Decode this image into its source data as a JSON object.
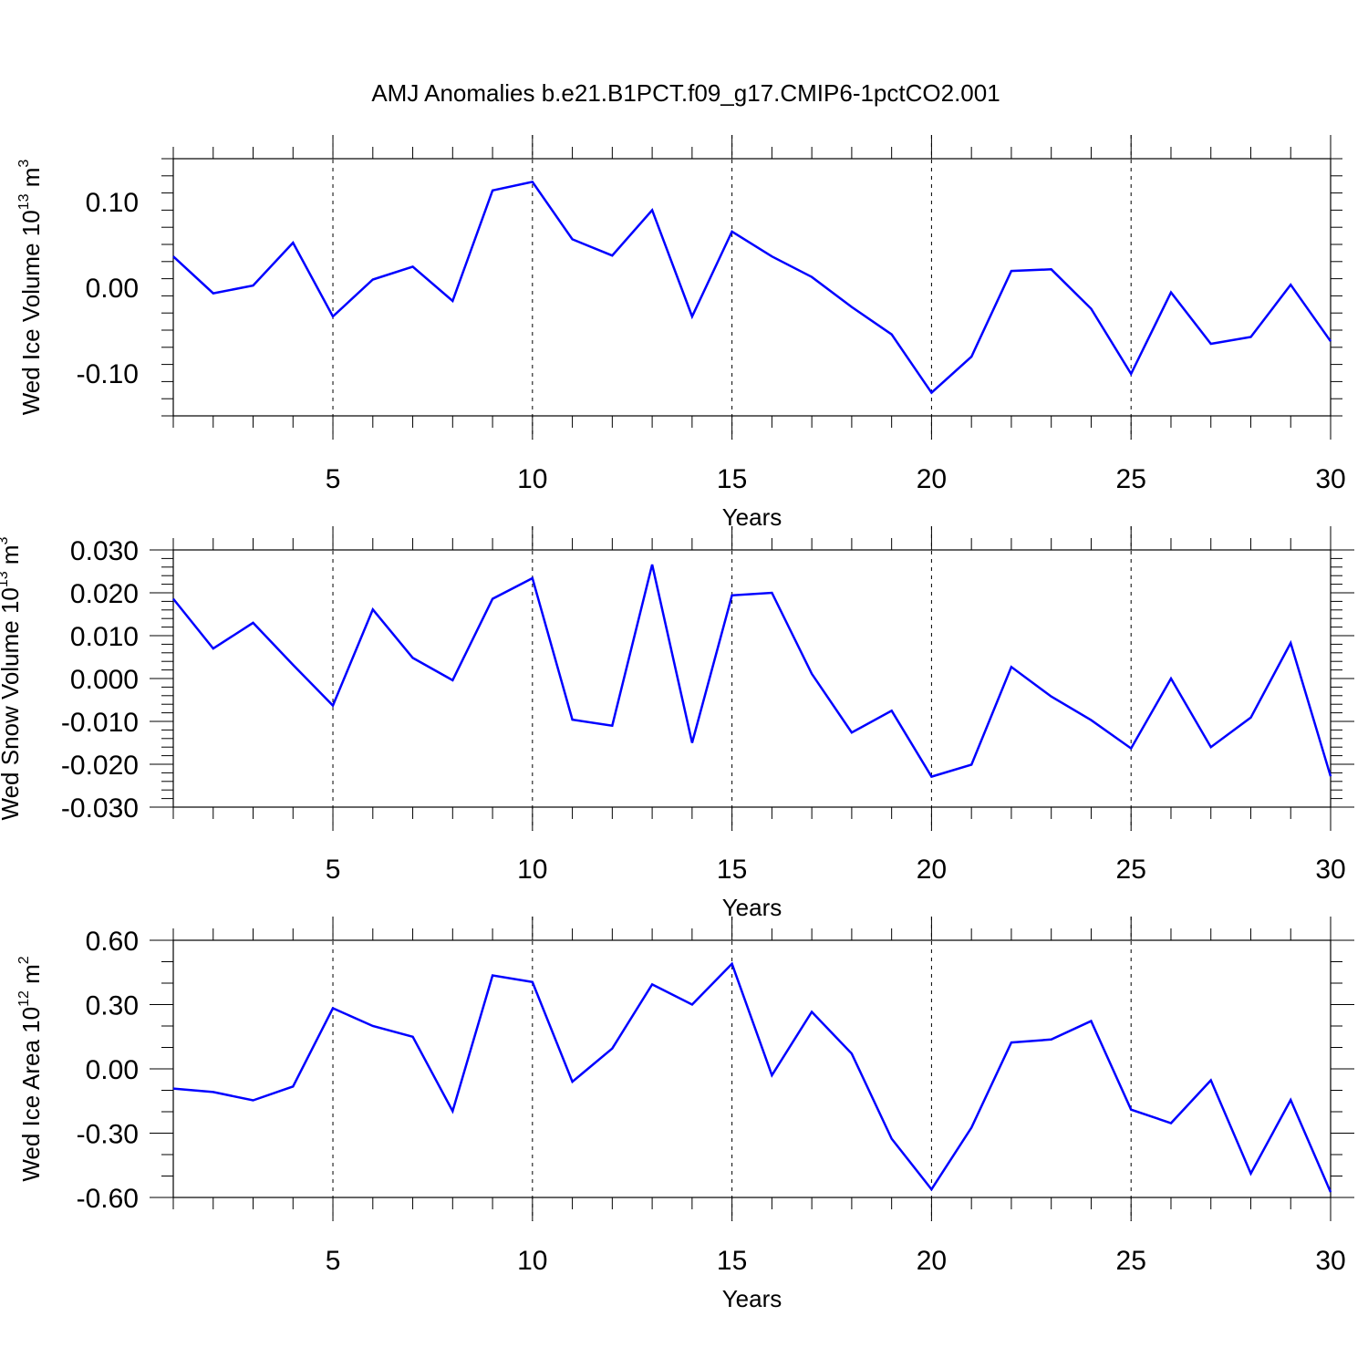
{
  "title": "AMJ Anomalies b.e21.B1PCT.f09_g17.CMIP6-1pctCO2.001",
  "chart_data": [
    {
      "type": "line",
      "ylabel": "Wed Ice Volume 10",
      "ylabel_exp": "13",
      "ylabel_unit": " m",
      "ylabel_unit_exp": "3",
      "xlabel": "Years",
      "xlim": [
        1,
        30
      ],
      "ylim": [
        -0.15,
        0.15
      ],
      "yticks": [
        -0.1,
        0.0,
        0.1
      ],
      "ytick_labels": [
        "-0.10",
        "0.00",
        "0.10"
      ],
      "xticks": [
        5,
        10,
        15,
        20,
        25,
        30
      ],
      "xtick_labels": [
        "5",
        "10",
        "15",
        "20",
        "25",
        "30"
      ],
      "x": [
        1,
        2,
        3,
        4,
        5,
        6,
        7,
        8,
        9,
        10,
        11,
        12,
        13,
        14,
        15,
        16,
        17,
        18,
        19,
        20,
        21,
        22,
        23,
        24,
        25,
        26,
        27,
        28,
        29,
        30
      ],
      "values": [
        0.036,
        -0.007,
        0.002,
        0.052,
        -0.034,
        0.009,
        0.024,
        -0.016,
        0.113,
        0.123,
        0.056,
        0.037,
        0.09,
        -0.034,
        0.065,
        0.036,
        0.012,
        -0.023,
        -0.055,
        -0.123,
        -0.081,
        0.019,
        0.021,
        -0.025,
        -0.101,
        -0.006,
        -0.066,
        -0.058,
        0.003,
        -0.063
      ],
      "color": "#0000ff"
    },
    {
      "type": "line",
      "ylabel": "Wed Snow Volume 10",
      "ylabel_exp": "13",
      "ylabel_unit": " m",
      "ylabel_unit_exp": "3",
      "xlabel": "Years",
      "xlim": [
        1,
        30
      ],
      "ylim": [
        -0.03,
        0.03
      ],
      "yticks": [
        -0.03,
        -0.02,
        -0.01,
        0.0,
        0.01,
        0.02,
        0.03
      ],
      "ytick_labels": [
        "-0.030",
        "-0.020",
        "-0.010",
        "0.000",
        "0.010",
        "0.020",
        "0.030"
      ],
      "xticks": [
        5,
        10,
        15,
        20,
        25,
        30
      ],
      "xtick_labels": [
        "5",
        "10",
        "15",
        "20",
        "25",
        "30"
      ],
      "x": [
        1,
        2,
        3,
        4,
        5,
        6,
        7,
        8,
        9,
        10,
        11,
        12,
        13,
        14,
        15,
        16,
        17,
        18,
        19,
        20,
        21,
        22,
        23,
        24,
        25,
        26,
        27,
        28,
        29,
        30
      ],
      "values": [
        0.0186,
        0.007,
        0.013,
        0.0032,
        -0.0063,
        0.0161,
        0.0048,
        -0.0004,
        0.0186,
        0.0234,
        -0.0096,
        -0.011,
        0.0266,
        -0.015,
        0.0194,
        0.02,
        0.0011,
        -0.0126,
        -0.0075,
        -0.0229,
        -0.0201,
        0.0027,
        -0.0042,
        -0.0097,
        -0.0163,
        0.0,
        -0.016,
        -0.0091,
        0.0083,
        -0.0228
      ],
      "color": "#0000ff"
    },
    {
      "type": "line",
      "ylabel": "Wed Ice Area 10",
      "ylabel_exp": "12",
      "ylabel_unit": " m",
      "ylabel_unit_exp": "2",
      "xlabel": "Years",
      "xlim": [
        1,
        30
      ],
      "ylim": [
        -0.6,
        0.6
      ],
      "yticks": [
        -0.6,
        -0.3,
        0.0,
        0.3,
        0.6
      ],
      "ytick_labels": [
        "-0.60",
        "-0.30",
        "0.00",
        "0.30",
        "0.60"
      ],
      "xticks": [
        5,
        10,
        15,
        20,
        25,
        30
      ],
      "xtick_labels": [
        "5",
        "10",
        "15",
        "20",
        "25",
        "30"
      ],
      "x": [
        1,
        2,
        3,
        4,
        5,
        6,
        7,
        8,
        9,
        10,
        11,
        12,
        13,
        14,
        15,
        16,
        17,
        18,
        19,
        20,
        21,
        22,
        23,
        24,
        25,
        26,
        27,
        28,
        29,
        30
      ],
      "values": [
        -0.092,
        -0.108,
        -0.147,
        -0.082,
        0.283,
        0.2,
        0.15,
        -0.197,
        0.436,
        0.405,
        -0.06,
        0.095,
        0.394,
        0.3,
        0.49,
        -0.03,
        0.266,
        0.071,
        -0.326,
        -0.562,
        -0.274,
        0.123,
        0.137,
        0.223,
        -0.19,
        -0.253,
        -0.053,
        -0.488,
        -0.145,
        -0.575
      ],
      "color": "#0000ff"
    }
  ]
}
